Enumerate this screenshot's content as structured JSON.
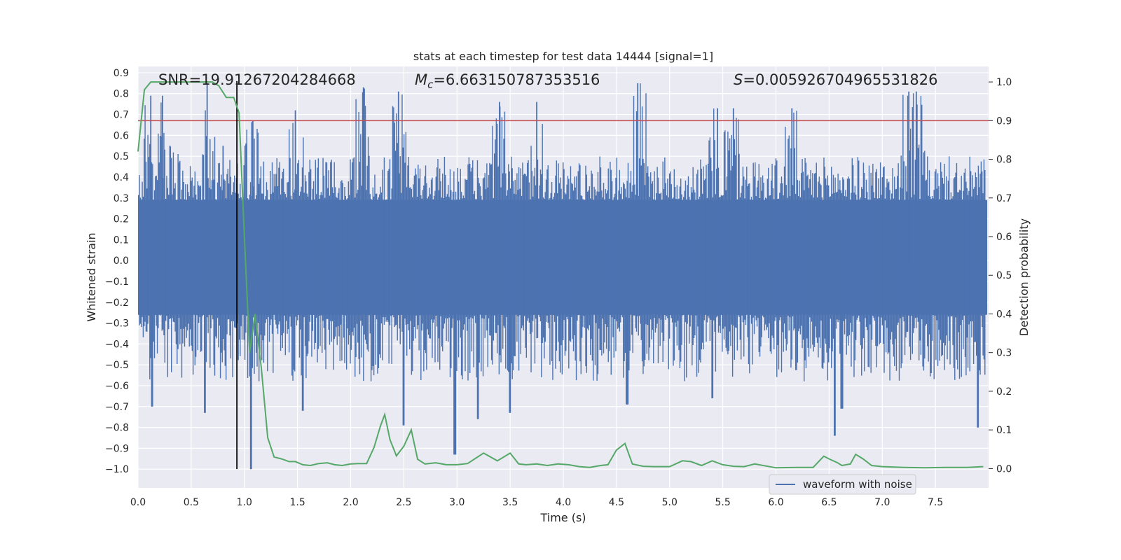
{
  "chart_data": {
    "type": "line",
    "title": "stats at each timestep for test data 14444 [signal=1]",
    "xlabel": "Time (s)",
    "ylabel": "Whitened strain",
    "y2label": "Detection probability",
    "xlim": [
      0.0,
      8.0
    ],
    "ylim": [
      -1.09,
      0.93
    ],
    "y2lim": [
      -0.05,
      1.04
    ],
    "xticks": [
      "0.0",
      "0.5",
      "1.0",
      "1.5",
      "2.0",
      "2.5",
      "3.0",
      "3.5",
      "4.0",
      "4.5",
      "5.0",
      "5.5",
      "6.0",
      "6.5",
      "7.0",
      "7.5"
    ],
    "yticks": [
      "0.9",
      "0.8",
      "0.7",
      "0.6",
      "0.5",
      "0.4",
      "0.3",
      "0.2",
      "0.1",
      "0.0",
      "-0.1",
      "-0.2",
      "-0.3",
      "-0.4",
      "-0.5",
      "-0.6",
      "-0.7",
      "-0.8",
      "-0.9",
      "-1.0"
    ],
    "y2ticks": [
      "1.0",
      "0.9",
      "0.8",
      "0.7",
      "0.6",
      "0.5",
      "0.4",
      "0.3",
      "0.2",
      "0.1",
      "0.0"
    ],
    "grid": true,
    "legend_position": "lower-right",
    "annotations": {
      "snr": "SNR=19.91267204284668",
      "mc_symbol": "M",
      "mc_sub": "c",
      "mc_value": "=6.663150787353516",
      "s_symbol": "S",
      "s_value": "=0.005926704965531826"
    },
    "threshold_probability": 0.9,
    "marker_time": 0.93,
    "series": [
      {
        "name": "waveform with noise",
        "color": "#4c72b0",
        "axis": "left",
        "dense_band": [
          -0.26,
          0.29
        ],
        "envelope": [
          {
            "x": 0.12,
            "hi": 0.79
          },
          {
            "x": 0.23,
            "hi": 0.79
          },
          {
            "x": 0.3,
            "hi": 0.55
          },
          {
            "x": 0.65,
            "hi": 0.85
          },
          {
            "x": 0.8,
            "hi": 0.55
          },
          {
            "x": 1.08,
            "hi": 0.67
          },
          {
            "x": 1.48,
            "hi": 0.72
          },
          {
            "x": 2.12,
            "hi": 0.83
          },
          {
            "x": 2.45,
            "hi": 0.81
          },
          {
            "x": 3.4,
            "hi": 0.76
          },
          {
            "x": 3.75,
            "hi": 0.76
          },
          {
            "x": 4.7,
            "hi": 0.85
          },
          {
            "x": 5.45,
            "hi": 0.73
          },
          {
            "x": 5.6,
            "hi": 0.73
          },
          {
            "x": 6.15,
            "hi": 0.73
          },
          {
            "x": 7.25,
            "hi": 0.81
          },
          {
            "x": 7.32,
            "hi": 0.81
          }
        ],
        "minima": [
          {
            "x": 0.13,
            "lo": -0.7
          },
          {
            "x": 0.63,
            "lo": -0.73
          },
          {
            "x": 1.06,
            "lo": -1.0
          },
          {
            "x": 1.55,
            "lo": -0.72
          },
          {
            "x": 2.5,
            "lo": -0.79
          },
          {
            "x": 2.98,
            "lo": -0.93
          },
          {
            "x": 3.2,
            "lo": -0.76
          },
          {
            "x": 3.5,
            "lo": -0.73
          },
          {
            "x": 4.6,
            "lo": -0.69
          },
          {
            "x": 5.4,
            "lo": -0.66
          },
          {
            "x": 6.55,
            "lo": -0.84
          },
          {
            "x": 6.62,
            "lo": -0.71
          },
          {
            "x": 7.9,
            "lo": -0.8
          }
        ]
      },
      {
        "name": "",
        "color": "#55a868",
        "axis": "right",
        "x": [
          0.0,
          0.06,
          0.12,
          0.18,
          0.25,
          0.32,
          0.4,
          0.5,
          0.6,
          0.7,
          0.76,
          0.83,
          0.9,
          0.95,
          1.0,
          1.05,
          1.1,
          1.16,
          1.22,
          1.28,
          1.35,
          1.42,
          1.48,
          1.55,
          1.62,
          1.7,
          1.78,
          1.85,
          1.92,
          2.0,
          2.08,
          2.15,
          2.22,
          2.28,
          2.32,
          2.37,
          2.43,
          2.5,
          2.57,
          2.63,
          2.7,
          2.8,
          2.9,
          3.0,
          3.1,
          3.25,
          3.38,
          3.5,
          3.58,
          3.65,
          3.75,
          3.85,
          3.95,
          4.05,
          4.15,
          4.25,
          4.35,
          4.42,
          4.5,
          4.58,
          4.65,
          4.75,
          4.85,
          5.0,
          5.12,
          5.2,
          5.3,
          5.4,
          5.5,
          5.6,
          5.7,
          5.8,
          6.0,
          6.2,
          6.35,
          6.45,
          6.5,
          6.58,
          6.62,
          6.7,
          6.75,
          6.82,
          6.9,
          7.0,
          7.2,
          7.4,
          7.6,
          7.8,
          7.95
        ],
        "values": [
          0.82,
          0.98,
          1.0,
          1.0,
          1.0,
          1.0,
          1.0,
          1.0,
          1.0,
          1.0,
          0.99,
          0.96,
          0.96,
          0.92,
          0.6,
          0.3,
          0.4,
          0.26,
          0.08,
          0.03,
          0.025,
          0.018,
          0.018,
          0.01,
          0.008,
          0.013,
          0.015,
          0.01,
          0.008,
          0.012,
          0.013,
          0.013,
          0.055,
          0.11,
          0.14,
          0.075,
          0.033,
          0.058,
          0.1,
          0.024,
          0.012,
          0.015,
          0.01,
          0.01,
          0.013,
          0.04,
          0.02,
          0.04,
          0.012,
          0.01,
          0.012,
          0.008,
          0.012,
          0.01,
          0.005,
          0.003,
          0.008,
          0.01,
          0.048,
          0.065,
          0.012,
          0.006,
          0.005,
          0.005,
          0.02,
          0.018,
          0.008,
          0.02,
          0.01,
          0.006,
          0.005,
          0.012,
          0.002,
          0.003,
          0.003,
          0.032,
          0.025,
          0.015,
          0.008,
          0.012,
          0.037,
          0.025,
          0.008,
          0.005,
          0.003,
          0.002,
          0.003,
          0.003,
          0.005
        ]
      }
    ]
  },
  "legend": {
    "label": "waveform with noise"
  },
  "colors": {
    "axes_bg": "#eaeaf2",
    "grid": "#ffffff",
    "waveform": "#4c72b0",
    "probability": "#55a868",
    "threshold": "#c44e52",
    "marker": "#000000"
  }
}
